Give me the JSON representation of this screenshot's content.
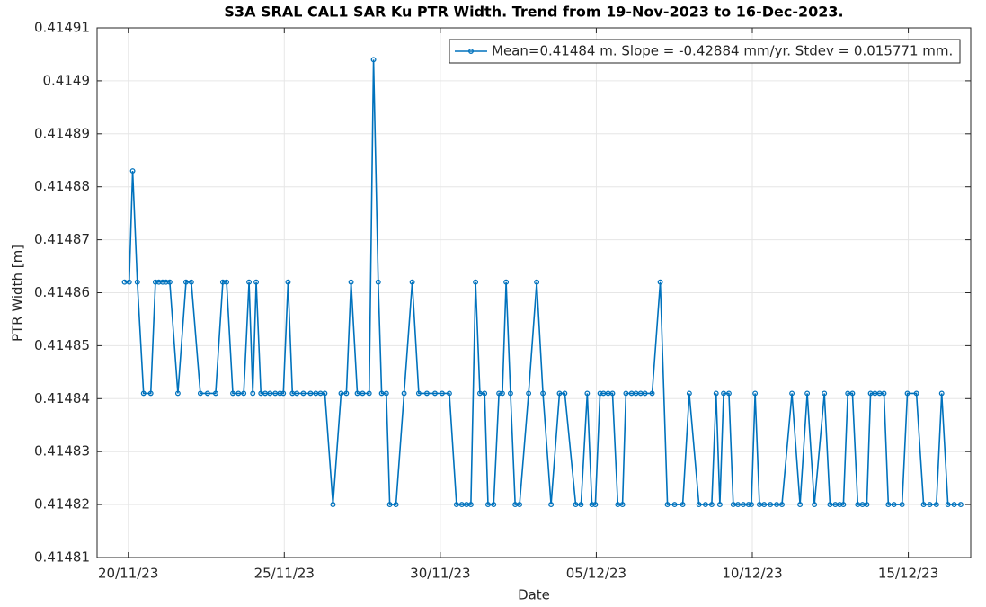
{
  "chart_data": {
    "type": "line",
    "title": "S3A SRAL CAL1 SAR Ku PTR Width. Trend from 19-Nov-2023 to 16-Dec-2023.",
    "xlabel": "Date",
    "ylabel": "PTR Width [m]",
    "x": [
      19.88,
      20.03,
      20.14,
      20.29,
      20.49,
      20.72,
      20.87,
      20.98,
      21.1,
      21.21,
      21.33,
      21.59,
      21.85,
      22.02,
      22.31,
      22.54,
      22.8,
      23.03,
      23.15,
      23.35,
      23.53,
      23.7,
      23.87,
      23.99,
      24.1,
      24.25,
      24.39,
      24.54,
      24.71,
      24.86,
      24.97,
      25.12,
      25.26,
      25.4,
      25.61,
      25.84,
      26.01,
      26.16,
      26.3,
      26.56,
      26.82,
      26.99,
      27.14,
      27.34,
      27.51,
      27.72,
      27.86,
      28.01,
      28.12,
      28.27,
      28.38,
      28.58,
      28.84,
      29.1,
      29.31,
      29.57,
      29.83,
      30.06,
      30.29,
      30.52,
      30.69,
      30.84,
      30.98,
      31.13,
      31.27,
      31.42,
      31.53,
      31.71,
      31.88,
      31.99,
      32.11,
      32.25,
      32.4,
      32.54,
      32.83,
      33.09,
      33.29,
      33.55,
      33.82,
      33.99,
      34.34,
      34.51,
      34.71,
      34.86,
      34.97,
      35.12,
      35.23,
      35.38,
      35.52,
      35.69,
      35.84,
      35.95,
      36.13,
      36.27,
      36.42,
      36.56,
      36.79,
      37.05,
      37.28,
      37.51,
      37.77,
      37.98,
      38.29,
      38.5,
      38.7,
      38.84,
      38.96,
      39.08,
      39.25,
      39.39,
      39.54,
      39.71,
      39.88,
      39.97,
      40.09,
      40.23,
      40.38,
      40.58,
      40.78,
      40.95,
      41.27,
      41.53,
      41.76,
      41.99,
      42.31,
      42.49,
      42.66,
      42.8,
      42.92,
      43.06,
      43.21,
      43.38,
      43.53,
      43.67,
      43.79,
      43.93,
      44.08,
      44.22,
      44.36,
      44.54,
      44.8,
      44.97,
      45.26,
      45.49,
      45.69,
      45.9,
      46.07,
      46.27,
      46.47,
      46.68
    ],
    "series": [
      {
        "name": "Mean=0.41484 m. Slope = -0.42884 mm/yr. Stdev = 0.015771 mm.",
        "color": "#0072bd",
        "values": [
          0.414862,
          0.414862,
          0.414883,
          0.414862,
          0.414841,
          0.414841,
          0.414862,
          0.414862,
          0.414862,
          0.414862,
          0.414862,
          0.414841,
          0.414862,
          0.414862,
          0.414841,
          0.414841,
          0.414841,
          0.414862,
          0.414862,
          0.414841,
          0.414841,
          0.414841,
          0.414862,
          0.414841,
          0.414862,
          0.414841,
          0.414841,
          0.414841,
          0.414841,
          0.414841,
          0.414841,
          0.414862,
          0.414841,
          0.414841,
          0.414841,
          0.414841,
          0.414841,
          0.414841,
          0.414841,
          0.41482,
          0.414841,
          0.414841,
          0.414862,
          0.414841,
          0.414841,
          0.414841,
          0.414904,
          0.414862,
          0.414841,
          0.414841,
          0.41482,
          0.41482,
          0.414841,
          0.414862,
          0.414841,
          0.414841,
          0.414841,
          0.414841,
          0.414841,
          0.41482,
          0.41482,
          0.41482,
          0.41482,
          0.414862,
          0.414841,
          0.414841,
          0.41482,
          0.41482,
          0.414841,
          0.414841,
          0.414862,
          0.414841,
          0.41482,
          0.41482,
          0.414841,
          0.414862,
          0.414841,
          0.41482,
          0.414841,
          0.414841,
          0.41482,
          0.41482,
          0.414841,
          0.41482,
          0.41482,
          0.414841,
          0.414841,
          0.414841,
          0.414841,
          0.41482,
          0.41482,
          0.414841,
          0.414841,
          0.414841,
          0.414841,
          0.414841,
          0.414841,
          0.414862,
          0.41482,
          0.41482,
          0.41482,
          0.414841,
          0.41482,
          0.41482,
          0.41482,
          0.414841,
          0.41482,
          0.414841,
          0.414841,
          0.41482,
          0.41482,
          0.41482,
          0.41482,
          0.41482,
          0.414841,
          0.41482,
          0.41482,
          0.41482,
          0.41482,
          0.41482,
          0.414841,
          0.41482,
          0.414841,
          0.41482,
          0.414841,
          0.41482,
          0.41482,
          0.41482,
          0.41482,
          0.414841,
          0.414841,
          0.41482,
          0.41482,
          0.41482,
          0.414841,
          0.414841,
          0.414841,
          0.414841,
          0.41482,
          0.41482,
          0.41482,
          0.414841,
          0.414841,
          0.41482,
          0.41482,
          0.41482,
          0.414841,
          0.41482,
          0.41482,
          0.41482
        ]
      }
    ],
    "xlim": [
      19,
      47
    ],
    "xticks": [
      {
        "value": 20,
        "label": "20/11/23"
      },
      {
        "value": 25,
        "label": "25/11/23"
      },
      {
        "value": 30,
        "label": "30/11/23"
      },
      {
        "value": 35,
        "label": "05/12/23"
      },
      {
        "value": 40,
        "label": "10/12/23"
      },
      {
        "value": 45,
        "label": "15/12/23"
      }
    ],
    "ylim": [
      0.41481,
      0.41491
    ],
    "yticks": [
      0.41481,
      0.41482,
      0.41483,
      0.41484,
      0.41485,
      0.41486,
      0.41487,
      0.41488,
      0.41489,
      0.4149,
      0.41491
    ],
    "grid": true,
    "legend": "upper right"
  }
}
